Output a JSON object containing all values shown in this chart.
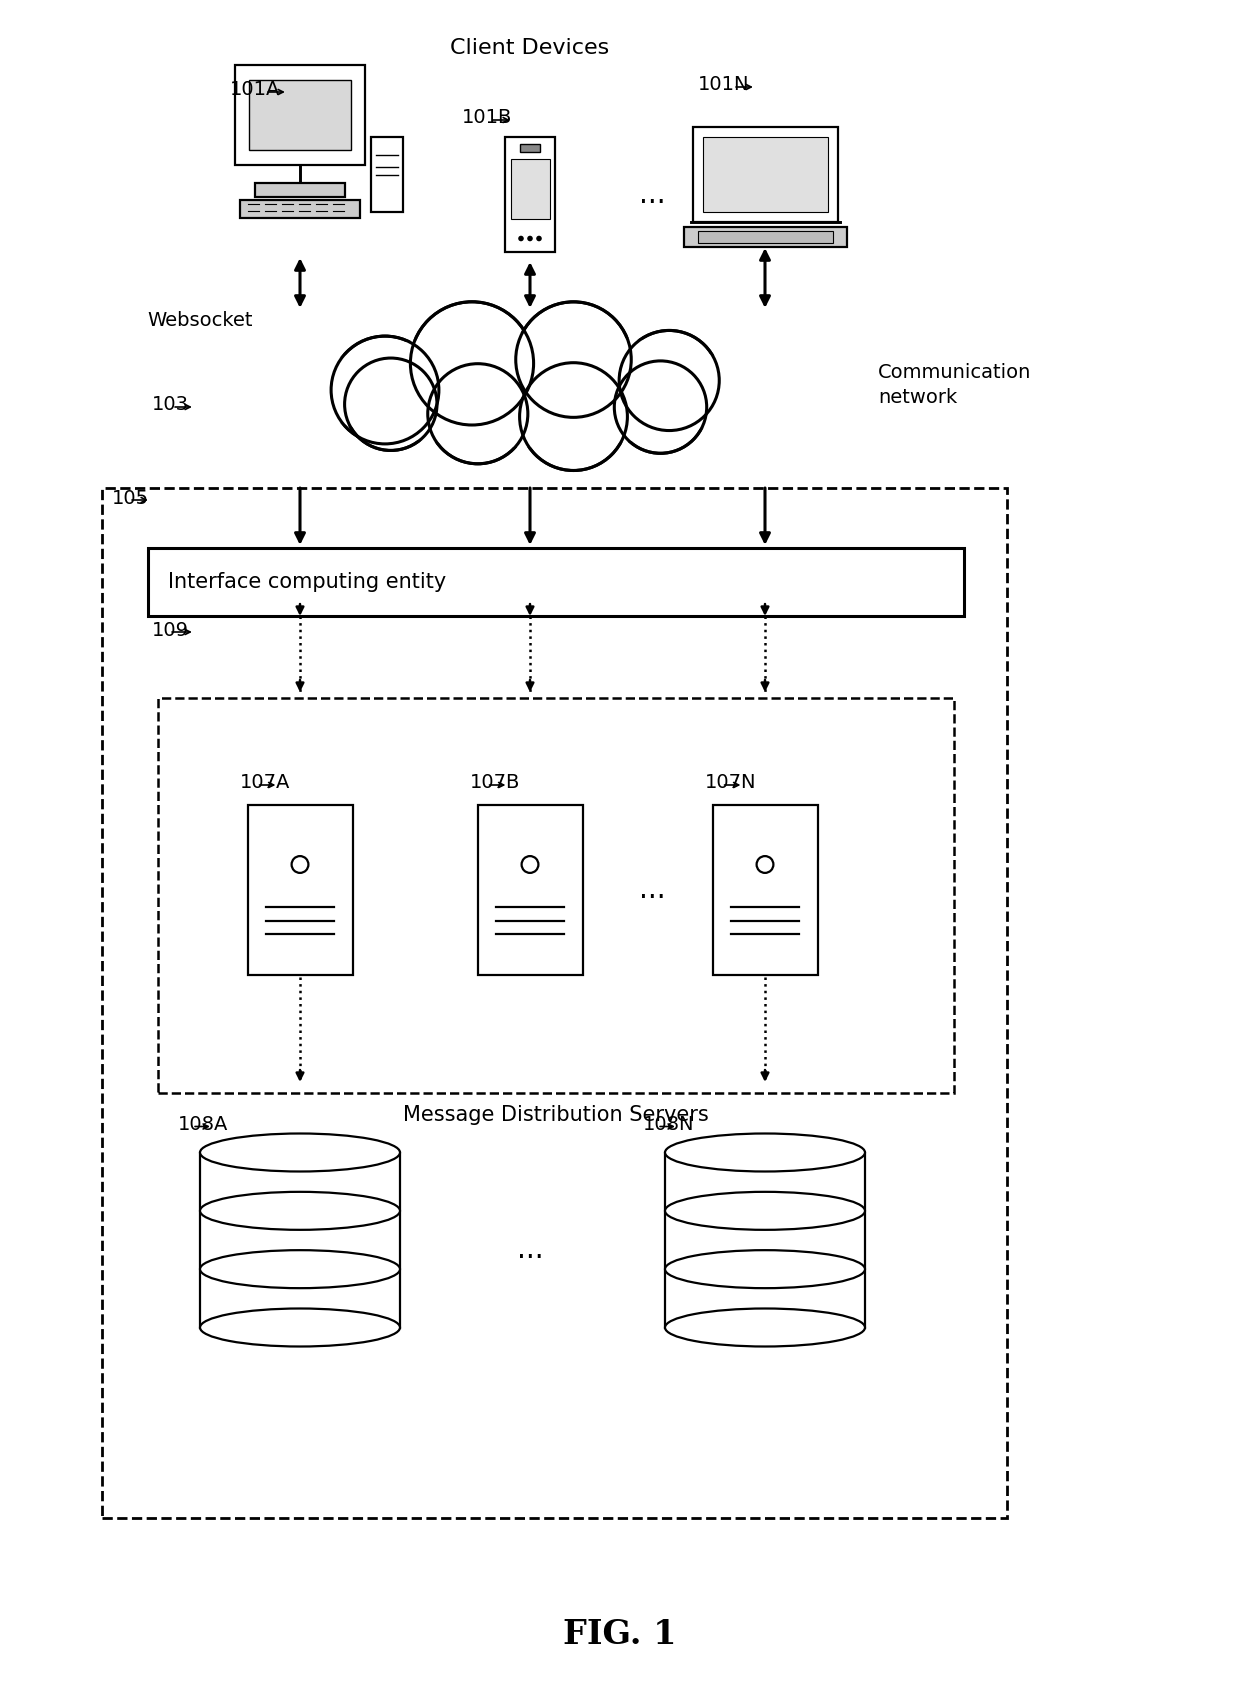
{
  "bg_color": "#ffffff",
  "fig_title": "FIG. 1",
  "labels": {
    "client_devices": "Client Devices",
    "websocket": "Websocket",
    "comm_network": "Communication\nnetwork",
    "interface_entity": "Interface computing entity",
    "msg_dist_servers": "Message Distribution Servers",
    "label_101A": "101A",
    "label_101B": "101B",
    "label_101N": "101N",
    "label_103": "103",
    "label_105": "105",
    "label_107A": "107A",
    "label_107B": "107B",
    "label_107N": "107N",
    "label_108A": "108A",
    "label_108N": "108N",
    "label_109": "109",
    "dots": "..."
  },
  "colors": {
    "black": "#000000",
    "white": "#ffffff"
  }
}
